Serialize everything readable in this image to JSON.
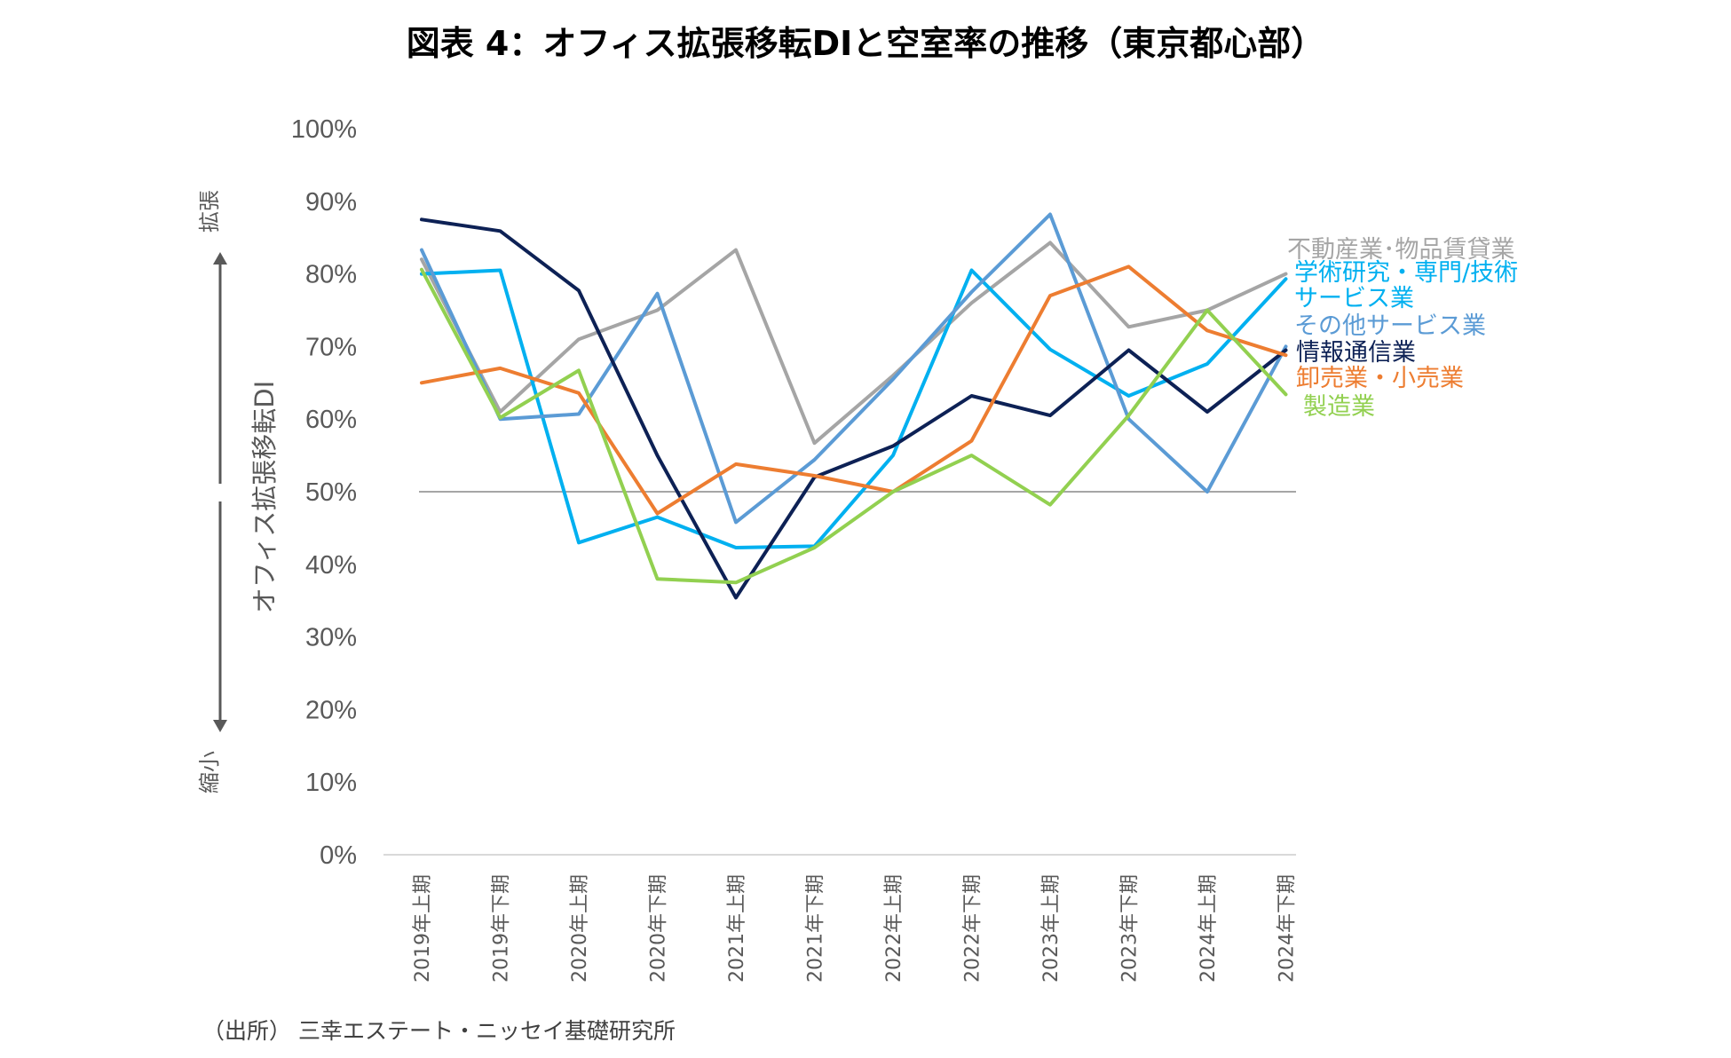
{
  "title": "図表 4：オフィス拡張移転DIと空室率の推移（東京都心部）",
  "source": "（出所） 三幸エステート・ニッセイ基礎研究所",
  "chart_data": {
    "type": "line",
    "title": "図表 4：オフィス拡張移転DIと空室率の推移（東京都心部）",
    "ylabel": "オフィス拡張移転DI",
    "ylabel_top": "拡張",
    "ylabel_bottom": "縮小",
    "ylim": [
      0,
      100
    ],
    "yticks": [
      0,
      10,
      20,
      30,
      40,
      50,
      60,
      70,
      80,
      90,
      100
    ],
    "ytick_labels": [
      "0%",
      "10%",
      "20%",
      "30%",
      "40%",
      "50%",
      "60%",
      "70%",
      "80%",
      "90%",
      "100%"
    ],
    "reference_line": 50,
    "categories": [
      "2019年上期",
      "2019年下期",
      "2020年上期",
      "2020年下期",
      "2021年上期",
      "2021年下期",
      "2022年上期",
      "2022年下期",
      "2023年上期",
      "2023年下期",
      "2024年上期",
      "2024年下期"
    ],
    "series": [
      {
        "name": "不動産業・物品賃貸業",
        "color": "#a5a5a5",
        "values": [
          82,
          61,
          71,
          75,
          83.3,
          56.7,
          66,
          76,
          84.3,
          72.7,
          75,
          80
        ]
      },
      {
        "name": "学術研究・専門/技術サービス業",
        "color": "#00b0f0",
        "values": [
          80,
          80.5,
          43,
          46.5,
          42.3,
          42.5,
          55,
          80.5,
          69.6,
          63.2,
          67.6,
          79.3
        ]
      },
      {
        "name": "その他サービス業",
        "color": "#5b9bd5",
        "values": [
          83.3,
          60,
          60.7,
          77.3,
          45.8,
          54.4,
          65.5,
          77.5,
          88.2,
          60,
          50,
          70
        ]
      },
      {
        "name": "情報通信業",
        "color": "#0d2155",
        "values": [
          87.5,
          85.9,
          77.7,
          55,
          35.4,
          52,
          56.3,
          63.2,
          60.5,
          69.5,
          61,
          69.5
        ]
      },
      {
        "name": "卸売業・小売業",
        "color": "#ed7d31",
        "values": [
          65,
          67,
          63.6,
          47,
          53.8,
          52.2,
          50,
          57,
          77,
          81,
          72.2,
          68.8
        ]
      },
      {
        "name": "製造業",
        "color": "#92d050",
        "values": [
          80.6,
          60.2,
          66.7,
          38,
          37.5,
          42.3,
          50,
          55,
          48.2,
          60.5,
          75,
          63.4
        ]
      }
    ],
    "legend": [
      {
        "text": "不動産業･物品賃貸業",
        "color": "#a5a5a5"
      },
      {
        "text": "学術研究・専門/技術",
        "color": "#00b0f0"
      },
      {
        "text": "サービス業",
        "color": "#00b0f0"
      },
      {
        "text": "その他サービス業",
        "color": "#5b9bd5"
      },
      {
        "text": "情報通信業",
        "color": "#0d2155"
      },
      {
        "text": "卸売業・小売業",
        "color": "#ed7d31"
      },
      {
        "text": "製造業",
        "color": "#92d050"
      }
    ]
  }
}
